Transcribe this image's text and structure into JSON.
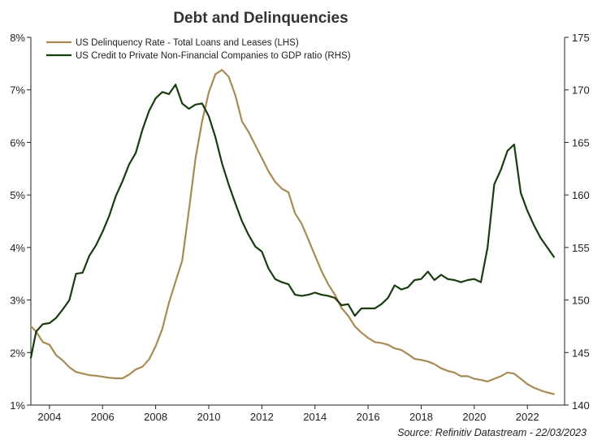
{
  "chart_data": {
    "type": "line",
    "title": "Debt and Delinquencies",
    "source": "Source: Refinitiv Datastream - 22/03/2023",
    "x_range": [
      2003.3,
      2023.4
    ],
    "x_ticks": [
      "2004",
      "2006",
      "2008",
      "2010",
      "2012",
      "2014",
      "2016",
      "2018",
      "2020",
      "2022"
    ],
    "y_left": {
      "range": [
        1,
        8
      ],
      "ticks": [
        "1%",
        "2%",
        "3%",
        "4%",
        "5%",
        "6%",
        "7%",
        "8%"
      ]
    },
    "y_right": {
      "range": [
        140,
        175
      ],
      "ticks": [
        "140",
        "145",
        "150",
        "155",
        "160",
        "165",
        "170",
        "175"
      ]
    },
    "legend_position": "top-left",
    "grid": false,
    "series": [
      {
        "name": "US Delinquency Rate - Total Loans and Leases (LHS)",
        "axis": "left",
        "color": "#a88a55",
        "x": [
          2003.3,
          2003.5,
          2003.75,
          2004.0,
          2004.25,
          2004.5,
          2004.75,
          2005.0,
          2005.25,
          2005.5,
          2005.75,
          2006.0,
          2006.25,
          2006.5,
          2006.75,
          2007.0,
          2007.25,
          2007.5,
          2007.75,
          2008.0,
          2008.25,
          2008.5,
          2008.75,
          2009.0,
          2009.25,
          2009.5,
          2009.75,
          2010.0,
          2010.25,
          2010.5,
          2010.75,
          2011.0,
          2011.25,
          2011.5,
          2011.75,
          2012.0,
          2012.25,
          2012.5,
          2012.75,
          2013.0,
          2013.25,
          2013.5,
          2013.75,
          2014.0,
          2014.25,
          2014.5,
          2014.75,
          2015.0,
          2015.25,
          2015.5,
          2015.75,
          2016.0,
          2016.25,
          2016.5,
          2016.75,
          2017.0,
          2017.25,
          2017.5,
          2017.75,
          2018.0,
          2018.25,
          2018.5,
          2018.75,
          2019.0,
          2019.25,
          2019.5,
          2019.75,
          2020.0,
          2020.25,
          2020.5,
          2020.75,
          2021.0,
          2021.25,
          2021.5,
          2021.75,
          2022.0,
          2022.25,
          2022.5,
          2022.75,
          2023.0
        ],
        "values": [
          2.5,
          2.4,
          2.2,
          2.15,
          1.95,
          1.85,
          1.72,
          1.63,
          1.6,
          1.57,
          1.56,
          1.54,
          1.52,
          1.51,
          1.51,
          1.58,
          1.68,
          1.73,
          1.87,
          2.12,
          2.45,
          2.95,
          3.35,
          3.75,
          4.7,
          5.7,
          6.4,
          6.95,
          7.3,
          7.38,
          7.25,
          6.9,
          6.4,
          6.2,
          5.95,
          5.7,
          5.45,
          5.25,
          5.12,
          5.05,
          4.65,
          4.45,
          4.15,
          3.85,
          3.55,
          3.3,
          3.1,
          2.85,
          2.7,
          2.5,
          2.38,
          2.28,
          2.2,
          2.18,
          2.15,
          2.08,
          2.05,
          1.97,
          1.88,
          1.86,
          1.83,
          1.78,
          1.7,
          1.65,
          1.62,
          1.55,
          1.55,
          1.5,
          1.48,
          1.45,
          1.5,
          1.55,
          1.62,
          1.6,
          1.5,
          1.4,
          1.33,
          1.28,
          1.24,
          1.21
        ]
      },
      {
        "name": "US Credit to Private Non-Financial Companies  to GDP ratio (RHS)",
        "axis": "right",
        "color": "#173c0f",
        "x": [
          2003.3,
          2003.5,
          2003.75,
          2004.0,
          2004.25,
          2004.5,
          2004.75,
          2005.0,
          2005.25,
          2005.5,
          2005.75,
          2006.0,
          2006.25,
          2006.5,
          2006.75,
          2007.0,
          2007.25,
          2007.5,
          2007.75,
          2008.0,
          2008.25,
          2008.5,
          2008.75,
          2009.0,
          2009.25,
          2009.5,
          2009.75,
          2010.0,
          2010.25,
          2010.5,
          2010.75,
          2011.0,
          2011.25,
          2011.5,
          2011.75,
          2012.0,
          2012.25,
          2012.5,
          2012.75,
          2013.0,
          2013.25,
          2013.5,
          2013.75,
          2014.0,
          2014.25,
          2014.5,
          2014.75,
          2015.0,
          2015.25,
          2015.5,
          2015.75,
          2016.0,
          2016.25,
          2016.5,
          2016.75,
          2017.0,
          2017.25,
          2017.5,
          2017.75,
          2018.0,
          2018.25,
          2018.5,
          2018.75,
          2019.0,
          2019.25,
          2019.5,
          2019.75,
          2020.0,
          2020.25,
          2020.5,
          2020.75,
          2021.0,
          2021.25,
          2021.5,
          2021.75,
          2022.0,
          2022.25,
          2022.5,
          2022.75,
          2023.0
        ],
        "values": [
          144.5,
          147.0,
          147.7,
          147.8,
          148.3,
          149.1,
          150.0,
          152.5,
          152.6,
          154.2,
          155.2,
          156.5,
          158.0,
          159.9,
          161.3,
          162.9,
          164.0,
          166.2,
          168.0,
          169.2,
          169.8,
          169.6,
          170.5,
          168.7,
          168.2,
          168.6,
          168.7,
          167.5,
          165.5,
          163.0,
          161.0,
          159.2,
          157.5,
          156.2,
          155.1,
          154.6,
          153.0,
          152.0,
          151.7,
          151.5,
          150.5,
          150.4,
          150.5,
          150.7,
          150.5,
          150.4,
          150.2,
          149.5,
          149.6,
          148.5,
          149.2,
          149.2,
          149.2,
          149.6,
          150.2,
          151.4,
          151.0,
          151.2,
          151.9,
          152.0,
          152.7,
          151.9,
          152.4,
          152.0,
          151.9,
          151.7,
          151.9,
          152.0,
          151.7,
          155.0,
          161.0,
          162.4,
          164.2,
          164.8,
          160.2,
          158.5,
          157.1,
          155.9,
          155.0,
          154.1
        ]
      }
    ]
  }
}
